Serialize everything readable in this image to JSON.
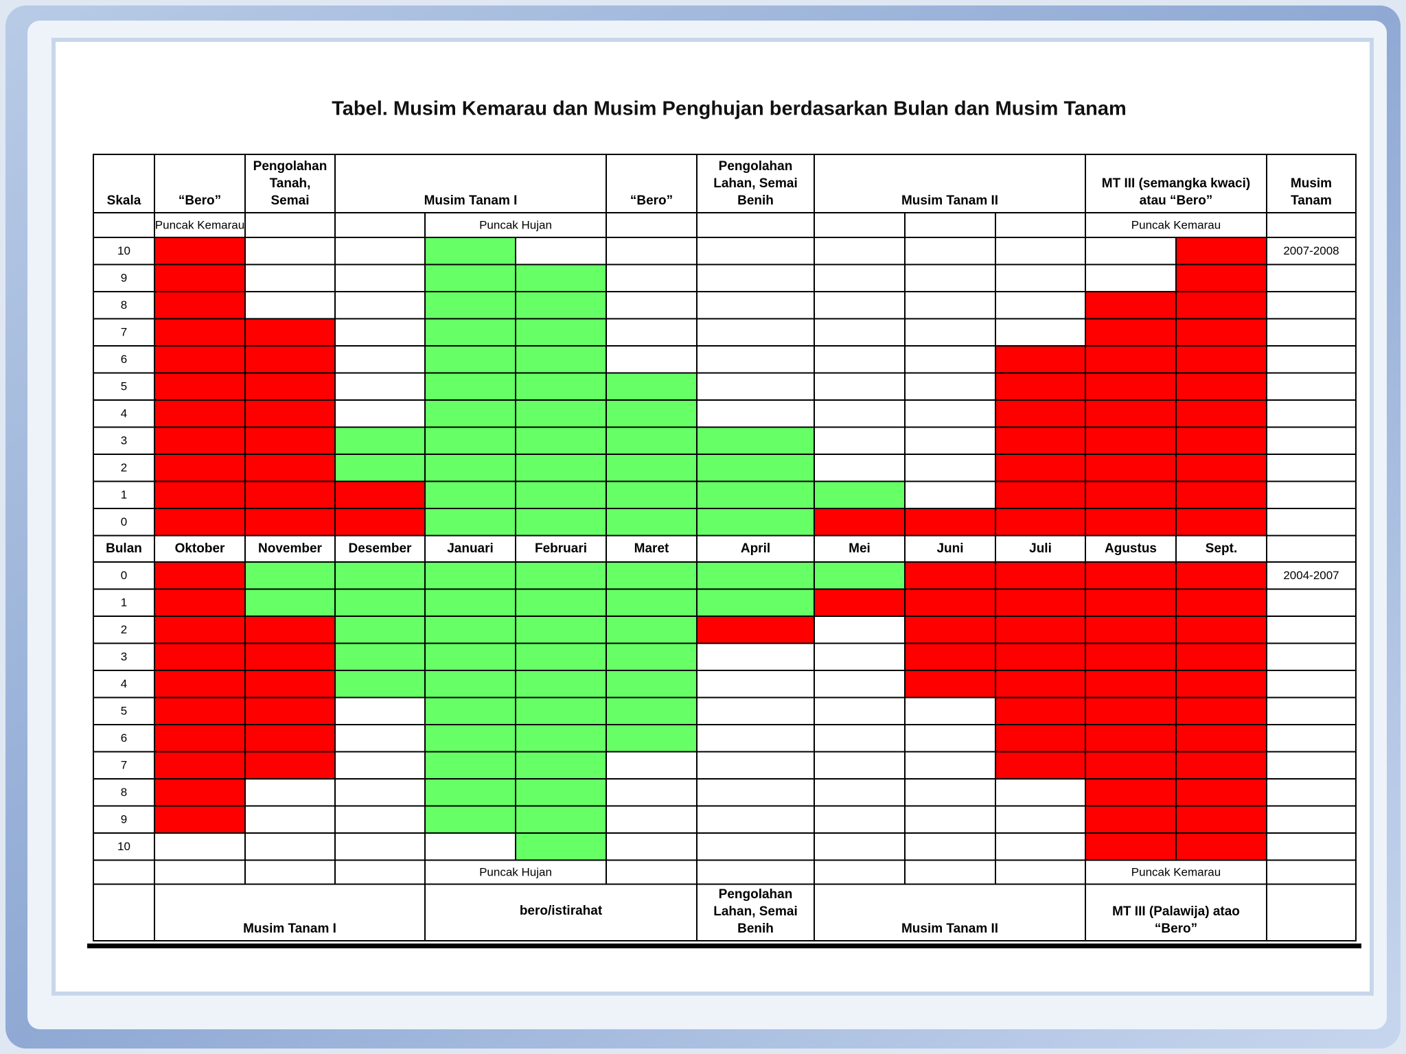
{
  "title": "Tabel. Musim Kemarau dan Musim Penghujan berdasarkan Bulan dan Musim Tanam",
  "header": {
    "cells": [
      [
        "Skala"
      ],
      [
        "“Bero”"
      ],
      [
        "Pengolahan",
        "Tanah,",
        "Semai"
      ],
      [
        "Musim Tanam I"
      ],
      [
        "“Bero”"
      ],
      [
        "Pengolahan",
        "Lahan, Semai",
        "Benih"
      ],
      [
        "Musim Tanam II"
      ],
      [
        "MT III (semangka kwaci)",
        "atau “Bero”"
      ],
      [
        "Musim",
        "Tanam"
      ]
    ]
  },
  "top_peaks": [
    "Puncak Kemarau",
    "Puncak Hujan",
    "Puncak Kemarau"
  ],
  "top_period": "2007-2008",
  "top_rows": [
    {
      "scale": 10,
      "cells": [
        "#ff0000",
        null,
        null,
        "#66ff66",
        null,
        null,
        null,
        null,
        null,
        null,
        null,
        "#ff0000"
      ]
    },
    {
      "scale": 9,
      "cells": [
        "#ff0000",
        null,
        null,
        "#66ff66",
        "#66ff66",
        null,
        null,
        null,
        null,
        null,
        null,
        "#ff0000"
      ]
    },
    {
      "scale": 8,
      "cells": [
        "#ff0000",
        null,
        null,
        "#66ff66",
        "#66ff66",
        null,
        null,
        null,
        null,
        null,
        "#ff0000",
        "#ff0000"
      ]
    },
    {
      "scale": 7,
      "cells": [
        "#ff0000",
        "#ff0000",
        null,
        "#66ff66",
        "#66ff66",
        null,
        null,
        null,
        null,
        null,
        "#ff0000",
        "#ff0000"
      ]
    },
    {
      "scale": 6,
      "cells": [
        "#ff0000",
        "#ff0000",
        null,
        "#66ff66",
        "#66ff66",
        null,
        null,
        null,
        null,
        "#ff0000",
        "#ff0000",
        "#ff0000"
      ]
    },
    {
      "scale": 5,
      "cells": [
        "#ff0000",
        "#ff0000",
        null,
        "#66ff66",
        "#66ff66",
        "#66ff66",
        null,
        null,
        null,
        "#ff0000",
        "#ff0000",
        "#ff0000"
      ]
    },
    {
      "scale": 4,
      "cells": [
        "#ff0000",
        "#ff0000",
        null,
        "#66ff66",
        "#66ff66",
        "#66ff66",
        null,
        null,
        null,
        "#ff0000",
        "#ff0000",
        "#ff0000"
      ]
    },
    {
      "scale": 3,
      "cells": [
        "#ff0000",
        "#ff0000",
        "#66ff66",
        "#66ff66",
        "#66ff66",
        "#66ff66",
        "#66ff66",
        null,
        null,
        "#ff0000",
        "#ff0000",
        "#ff0000"
      ]
    },
    {
      "scale": 2,
      "cells": [
        "#ff0000",
        "#ff0000",
        "#66ff66",
        "#66ff66",
        "#66ff66",
        "#66ff66",
        "#66ff66",
        null,
        null,
        "#ff0000",
        "#ff0000",
        "#ff0000"
      ]
    },
    {
      "scale": 1,
      "cells": [
        "#ff0000",
        "#ff0000",
        "#ff0000",
        "#66ff66",
        "#66ff66",
        "#66ff66",
        "#66ff66",
        "#66ff66",
        null,
        "#ff0000",
        "#ff0000",
        "#ff0000"
      ]
    },
    {
      "scale": 0,
      "cells": [
        "#ff0000",
        "#ff0000",
        "#ff0000",
        "#66ff66",
        "#66ff66",
        "#66ff66",
        "#66ff66",
        "#ff0000",
        "#ff0000",
        "#ff0000",
        "#ff0000",
        "#ff0000"
      ]
    }
  ],
  "months_label": "Bulan",
  "months": [
    "Oktober",
    "November",
    "Desember",
    "Januari",
    "Februari",
    "Maret",
    "April",
    "Mei",
    "Juni",
    "Juli",
    "Agustus",
    "Sept."
  ],
  "bottom_period": "2004-2007",
  "bottom_rows": [
    {
      "scale": 0,
      "cells": [
        "#ff0000",
        "#66ff66",
        "#66ff66",
        "#66ff66",
        "#66ff66",
        "#66ff66",
        "#66ff66",
        "#66ff66",
        "#ff0000",
        "#ff0000",
        "#ff0000",
        "#ff0000"
      ]
    },
    {
      "scale": 1,
      "cells": [
        "#ff0000",
        "#66ff66",
        "#66ff66",
        "#66ff66",
        "#66ff66",
        "#66ff66",
        "#66ff66",
        "#ff0000",
        "#ff0000",
        "#ff0000",
        "#ff0000",
        "#ff0000"
      ]
    },
    {
      "scale": 2,
      "cells": [
        "#ff0000",
        "#ff0000",
        "#66ff66",
        "#66ff66",
        "#66ff66",
        "#66ff66",
        "#ff0000",
        null,
        "#ff0000",
        "#ff0000",
        "#ff0000",
        "#ff0000"
      ]
    },
    {
      "scale": 3,
      "cells": [
        "#ff0000",
        "#ff0000",
        "#66ff66",
        "#66ff66",
        "#66ff66",
        "#66ff66",
        null,
        null,
        "#ff0000",
        "#ff0000",
        "#ff0000",
        "#ff0000"
      ]
    },
    {
      "scale": 4,
      "cells": [
        "#ff0000",
        "#ff0000",
        "#66ff66",
        "#66ff66",
        "#66ff66",
        "#66ff66",
        null,
        null,
        "#ff0000",
        "#ff0000",
        "#ff0000",
        "#ff0000"
      ]
    },
    {
      "scale": 5,
      "cells": [
        "#ff0000",
        "#ff0000",
        null,
        "#66ff66",
        "#66ff66",
        "#66ff66",
        null,
        null,
        null,
        "#ff0000",
        "#ff0000",
        "#ff0000"
      ]
    },
    {
      "scale": 6,
      "cells": [
        "#ff0000",
        "#ff0000",
        null,
        "#66ff66",
        "#66ff66",
        "#66ff66",
        null,
        null,
        null,
        "#ff0000",
        "#ff0000",
        "#ff0000"
      ]
    },
    {
      "scale": 7,
      "cells": [
        "#ff0000",
        "#ff0000",
        null,
        "#66ff66",
        "#66ff66",
        null,
        null,
        null,
        null,
        "#ff0000",
        "#ff0000",
        "#ff0000"
      ]
    },
    {
      "scale": 8,
      "cells": [
        "#ff0000",
        null,
        null,
        "#66ff66",
        "#66ff66",
        null,
        null,
        null,
        null,
        null,
        "#ff0000",
        "#ff0000"
      ]
    },
    {
      "scale": 9,
      "cells": [
        "#ff0000",
        null,
        null,
        "#66ff66",
        "#66ff66",
        null,
        null,
        null,
        null,
        null,
        "#ff0000",
        "#ff0000"
      ]
    },
    {
      "scale": 10,
      "cells": [
        null,
        null,
        null,
        null,
        "#66ff66",
        null,
        null,
        null,
        null,
        null,
        "#ff0000",
        "#ff0000"
      ]
    }
  ],
  "bottom_peaks": [
    "Puncak Hujan",
    "Puncak Kemarau"
  ],
  "footer": {
    "cells": [
      [
        "Musim Tanam I"
      ],
      [
        "bero/istirahat"
      ],
      [
        "Pengolahan",
        "Lahan, Semai",
        "Benih"
      ],
      [
        "Musim Tanam II"
      ],
      [
        "MT III (Palawija) atao",
        "“Bero”"
      ]
    ]
  }
}
